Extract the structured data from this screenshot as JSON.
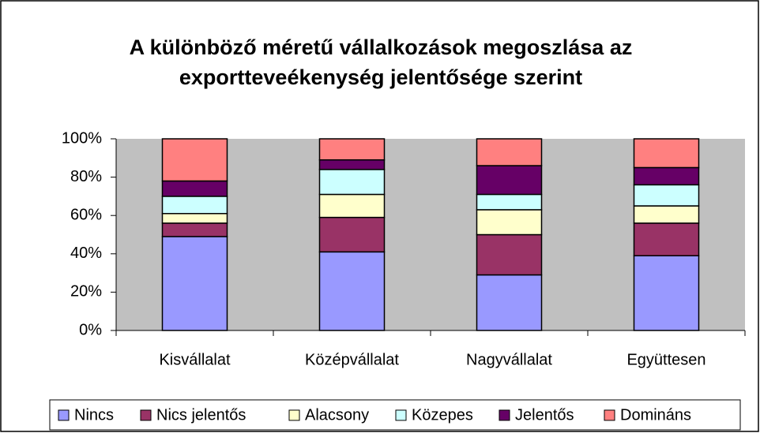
{
  "chart_data": {
    "type": "stacked_bar",
    "title": [
      "A különböző méretű vállalkozások megoszlása az",
      "exportteveékenység jelentősége szerint"
    ],
    "categories": [
      "Kisvállalat",
      "Középvállalat",
      "Nagyvállalat",
      "Együttesen"
    ],
    "series": [
      {
        "name": "Nincs",
        "color": "#9999ff",
        "values": [
          49,
          41,
          29,
          39
        ]
      },
      {
        "name": "Nics jelentős",
        "color": "#993366",
        "values": [
          7,
          18,
          21,
          17
        ]
      },
      {
        "name": "Alacsony",
        "color": "#ffffcc",
        "values": [
          5,
          12,
          13,
          9
        ]
      },
      {
        "name": "Közepes",
        "color": "#ccffff",
        "values": [
          9,
          13,
          8,
          11
        ]
      },
      {
        "name": "Jelentős",
        "color": "#660066",
        "values": [
          8,
          5,
          15,
          9
        ]
      },
      {
        "name": "Domináns",
        "color": "#ff8080",
        "values": [
          22,
          11,
          14,
          15
        ]
      }
    ],
    "ylim": [
      0,
      100
    ],
    "yticks": [
      {
        "value": 0,
        "label": "0%"
      },
      {
        "value": 20,
        "label": "20%"
      },
      {
        "value": 40,
        "label": "40%"
      },
      {
        "value": 60,
        "label": "60%"
      },
      {
        "value": 80,
        "label": "80%"
      },
      {
        "value": 100,
        "label": "100%"
      }
    ],
    "plot_background": "#c0c0c0",
    "legend": "bottom"
  }
}
